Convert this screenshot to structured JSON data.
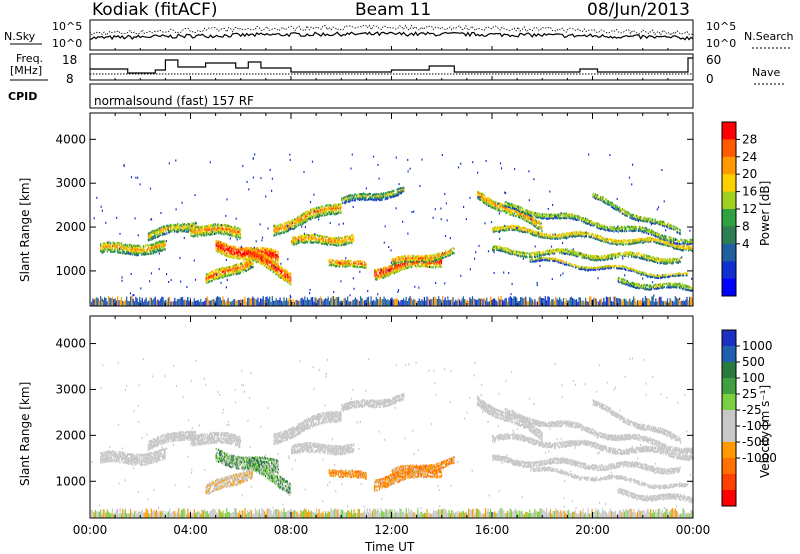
{
  "header": {
    "title": "Kodiak (fitACF)",
    "beam": "Beam 11",
    "date": "08/Jun/2013"
  },
  "top_panels": {
    "nsky_label": "N.Sky",
    "nsearch_label": "N.Search",
    "noise_ticks": [
      "10^5",
      "10^0"
    ],
    "freq_label_1": "Freq.",
    "freq_label_2": "[MHz]",
    "freq_ticks": [
      "18",
      "8"
    ],
    "nave_label": "Nave",
    "nave_ticks": [
      "60",
      "0"
    ],
    "cpid_label": "CPID",
    "cpid_text": "normalsound (fast) 157 RF"
  },
  "chart_data": [
    {
      "type": "heatmap",
      "name": "power",
      "ylabel": "Slant Range [km]",
      "yticks": [
        1000,
        2000,
        3000,
        4000
      ],
      "ylim": [
        200,
        4600
      ],
      "colorbar_label": "Power [dB]",
      "colorbar_ticks": [
        "28",
        "24",
        "20",
        "16",
        "12",
        "8",
        "4"
      ],
      "colorbar_colors": [
        "#ff0000",
        "#ff5a00",
        "#ff9900",
        "#ffd000",
        "#a0d020",
        "#30a040",
        "#2e7d54",
        "#2060a0",
        "#1030d0",
        "#0000ff"
      ]
    },
    {
      "type": "heatmap",
      "name": "velocity",
      "ylabel": "Slant Range [km]",
      "yticks": [
        1000,
        2000,
        3000,
        4000
      ],
      "ylim": [
        200,
        4600
      ],
      "xlabel": "Time UT",
      "xticks": [
        "00:00",
        "04:00",
        "08:00",
        "12:00",
        "16:00",
        "20:00",
        "00:00"
      ],
      "colorbar_label": "Velocity [m s⁻¹]",
      "colorbar_ticks": [
        "1000",
        "500",
        "100",
        "25",
        "-25",
        "-100",
        "-500",
        "-1000"
      ],
      "colorbar_colors": [
        "#1a30c0",
        "#1e5fb0",
        "#2a7a40",
        "#40a040",
        "#7ad040",
        "#c8c8c8",
        "#c8c8c8",
        "#ff9900",
        "#ff7000",
        "#ff4000",
        "#ff0000"
      ]
    }
  ]
}
